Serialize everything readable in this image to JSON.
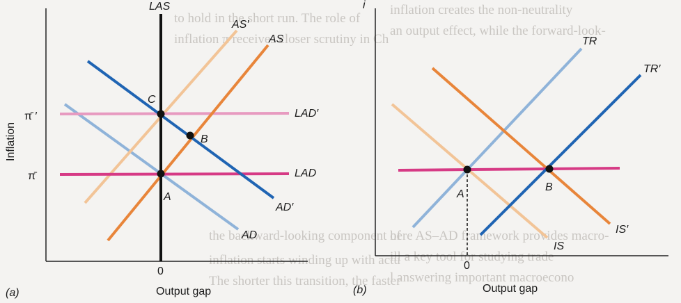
{
  "panel_a": {
    "caption": "(a)",
    "x_axis_label": "Output gap",
    "y_axis_label": "Inflation",
    "x_tick": "0",
    "y_tick_high": "π̄ ′",
    "y_tick_low": "π̄",
    "curves": {
      "las": "LAS",
      "as_prime": "AS′",
      "as": "AS",
      "lad_prime": "LAD′",
      "lad": "LAD",
      "ad_prime": "AD′",
      "ad": "AD"
    },
    "points": {
      "a": "A",
      "b": "B",
      "c": "C"
    }
  },
  "panel_b": {
    "caption": "(b)",
    "x_axis_label": "Output gap",
    "y_axis_label": "i",
    "x_tick": "0",
    "curves": {
      "tr": "TR",
      "tr_prime": "TR′",
      "is": "IS",
      "is_prime": "IS′"
    },
    "points": {
      "a": "A",
      "b": "B"
    }
  },
  "colors": {
    "dark_blue": "#1f64b3",
    "light_blue": "#8fb3d9",
    "orange": "#e8853a",
    "light_orange": "#f2c497",
    "magenta": "#d63a85",
    "pink": "#e79ac0",
    "black": "#111111"
  }
}
